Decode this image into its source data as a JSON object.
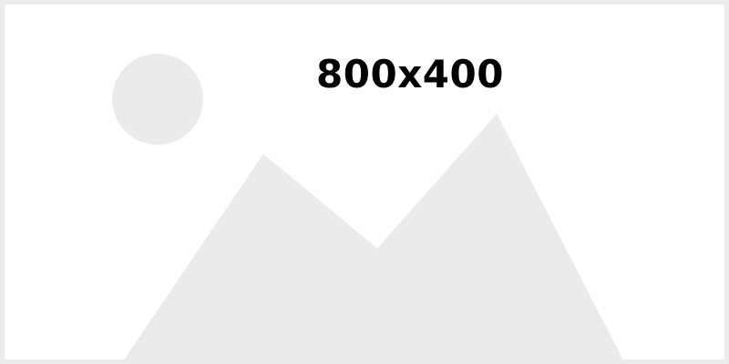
{
  "placeholder": {
    "dimension_text": "800x400",
    "shape_color": "#ebebeb",
    "border_color": "#ebebeb",
    "background_color": "#ffffff",
    "text_color": "#000000",
    "icons": [
      "sun-circle-icon",
      "mountain-icon"
    ]
  }
}
